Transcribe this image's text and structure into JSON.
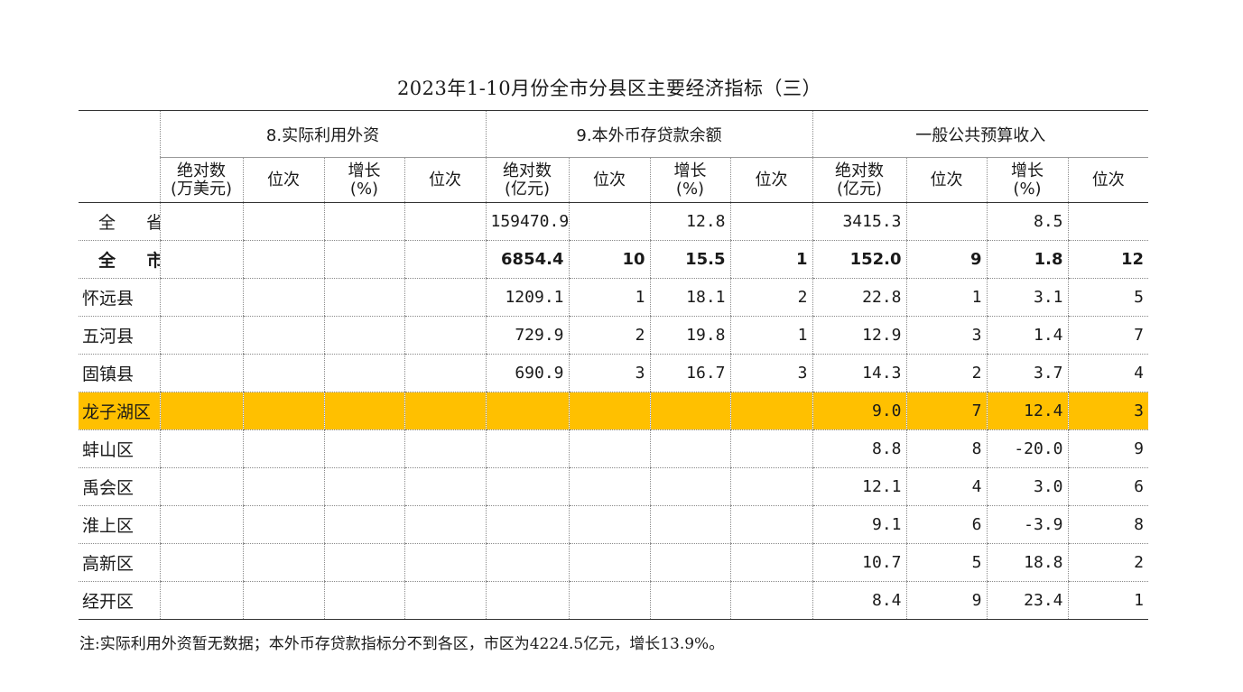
{
  "title": "2023年1-10月份全市分县区主要经济指标（三）",
  "header": {
    "groups": [
      "8.实际利用外资",
      "9.本外币存贷款余额",
      "一般公共预算收入"
    ],
    "sub": [
      [
        "绝对数",
        "(万美元)"
      ],
      [
        "位次"
      ],
      [
        "增长",
        "(%)"
      ],
      [
        "位次"
      ],
      [
        "绝对数",
        "(亿元)"
      ],
      [
        "位次"
      ],
      [
        "增长",
        "(%)"
      ],
      [
        "位次"
      ],
      [
        "绝对数",
        "(亿元)"
      ],
      [
        "位次"
      ],
      [
        "增长",
        "(%)"
      ],
      [
        "位次"
      ]
    ]
  },
  "rows": [
    {
      "name": "全 省",
      "cells": [
        "",
        "",
        "",
        "",
        "159470.9",
        "",
        "12.8",
        "",
        "3415.3",
        "",
        "8.5",
        ""
      ]
    },
    {
      "name": "全 市",
      "cells": [
        "",
        "",
        "",
        "",
        "6854.4",
        "10",
        "15.5",
        "1",
        "152.0",
        "9",
        "1.8",
        "12"
      ]
    },
    {
      "name": "怀远县",
      "cells": [
        "",
        "",
        "",
        "",
        "1209.1",
        "1",
        "18.1",
        "2",
        "22.8",
        "1",
        "3.1",
        "5"
      ]
    },
    {
      "name": "五河县",
      "cells": [
        "",
        "",
        "",
        "",
        "729.9",
        "2",
        "19.8",
        "1",
        "12.9",
        "3",
        "1.4",
        "7"
      ]
    },
    {
      "name": "固镇县",
      "cells": [
        "",
        "",
        "",
        "",
        "690.9",
        "3",
        "16.7",
        "3",
        "14.3",
        "2",
        "3.7",
        "4"
      ]
    },
    {
      "name": "龙子湖区",
      "cells": [
        "",
        "",
        "",
        "",
        "",
        "",
        "",
        "",
        "9.0",
        "7",
        "12.4",
        "3"
      ]
    },
    {
      "name": "蚌山区",
      "cells": [
        "",
        "",
        "",
        "",
        "",
        "",
        "",
        "",
        "8.8",
        "8",
        "-20.0",
        "9"
      ]
    },
    {
      "name": "禹会区",
      "cells": [
        "",
        "",
        "",
        "",
        "",
        "",
        "",
        "",
        "12.1",
        "4",
        "3.0",
        "6"
      ]
    },
    {
      "name": "淮上区",
      "cells": [
        "",
        "",
        "",
        "",
        "",
        "",
        "",
        "",
        "9.1",
        "6",
        "-3.9",
        "8"
      ]
    },
    {
      "name": "高新区",
      "cells": [
        "",
        "",
        "",
        "",
        "",
        "",
        "",
        "",
        "10.7",
        "5",
        "18.8",
        "2"
      ]
    },
    {
      "name": "经开区",
      "cells": [
        "",
        "",
        "",
        "",
        "",
        "",
        "",
        "",
        "8.4",
        "9",
        "23.4",
        "1"
      ]
    }
  ],
  "highlight_color": "#ffc000",
  "note": "注:实际利用外资暂无数据；本外币存贷款指标分不到各区，市区为4224.5亿元，增长13.9%。"
}
